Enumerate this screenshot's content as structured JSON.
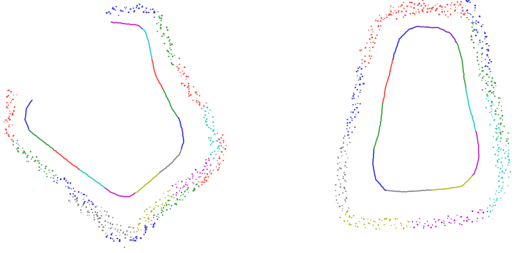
{
  "colors": {
    "background": "#ffffff",
    "red": "#ff3b30",
    "green": "#2e9e34",
    "blue": "#2c2cf0",
    "cyan": "#22c9c9",
    "magenta": "#c51bd1",
    "gray": "#808080",
    "olive": "#b8b81a"
  },
  "panels": [
    {
      "name": "left-trajectory",
      "curve_segment_colors": [
        "magenta",
        "cyan",
        "red",
        "green",
        "blue",
        "gray",
        "olive",
        "magenta",
        "cyan",
        "red",
        "green",
        "blue"
      ],
      "scatter_colors": [
        "blue",
        "green",
        "red",
        "cyan",
        "magenta",
        "olive",
        "gray",
        "blue",
        "green",
        "red"
      ]
    },
    {
      "name": "right-trajectory",
      "curve_segment_colors": [
        "purple",
        "green",
        "cyan",
        "magenta",
        "olive",
        "gray",
        "blue",
        "green",
        "red",
        "blue"
      ],
      "scatter_colors": [
        "red",
        "blue",
        "green",
        "cyan",
        "magenta",
        "olive",
        "gray",
        "blue",
        "red"
      ]
    }
  ]
}
